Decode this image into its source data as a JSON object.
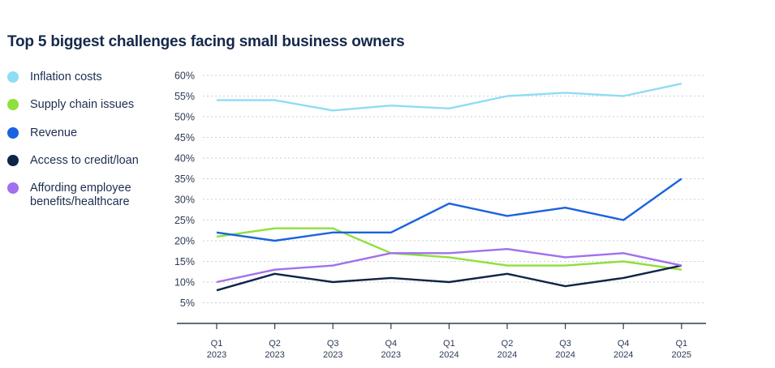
{
  "chart_data": {
    "type": "line",
    "title": "Top 5 biggest challenges facing small business owners",
    "xlabel": "",
    "ylabel": "",
    "categories": [
      [
        "Q1",
        "2023"
      ],
      [
        "Q2",
        "2023"
      ],
      [
        "Q3",
        "2023"
      ],
      [
        "Q4",
        "2023"
      ],
      [
        "Q1",
        "2024"
      ],
      [
        "Q2",
        "2024"
      ],
      [
        "Q3",
        "2024"
      ],
      [
        "Q4",
        "2024"
      ],
      [
        "Q1",
        "2025"
      ]
    ],
    "yticks": [
      5,
      10,
      15,
      20,
      25,
      30,
      35,
      40,
      45,
      50,
      55,
      60
    ],
    "ytick_labels": [
      "5%",
      "10%",
      "15%",
      "20%",
      "25%",
      "30%",
      "35%",
      "40%",
      "45%",
      "50%",
      "55%",
      "60%"
    ],
    "ylim": [
      0,
      60
    ],
    "grid": true,
    "legend_placement": "left",
    "series": [
      {
        "name": "Inflation costs",
        "color": "#8fdcf5",
        "values": [
          54,
          54,
          51.5,
          52.7,
          52,
          55,
          55.8,
          55,
          58
        ]
      },
      {
        "name": "Supply chain issues",
        "color": "#8ee03a",
        "values": [
          21,
          23,
          23,
          17,
          16,
          14,
          14,
          15,
          13
        ]
      },
      {
        "name": "Revenue",
        "color": "#1a63e0",
        "values": [
          22,
          20,
          22,
          22,
          29,
          26,
          28,
          25,
          35
        ]
      },
      {
        "name": "Access to credit/loan",
        "color": "#0f2447",
        "values": [
          8,
          12,
          10,
          11,
          10,
          12,
          9,
          11,
          14
        ]
      },
      {
        "name": "Affording employee benefits/healthcare",
        "color": "#a070ee",
        "values": [
          10,
          13,
          14,
          17,
          17,
          18,
          16,
          17,
          14
        ]
      }
    ]
  }
}
